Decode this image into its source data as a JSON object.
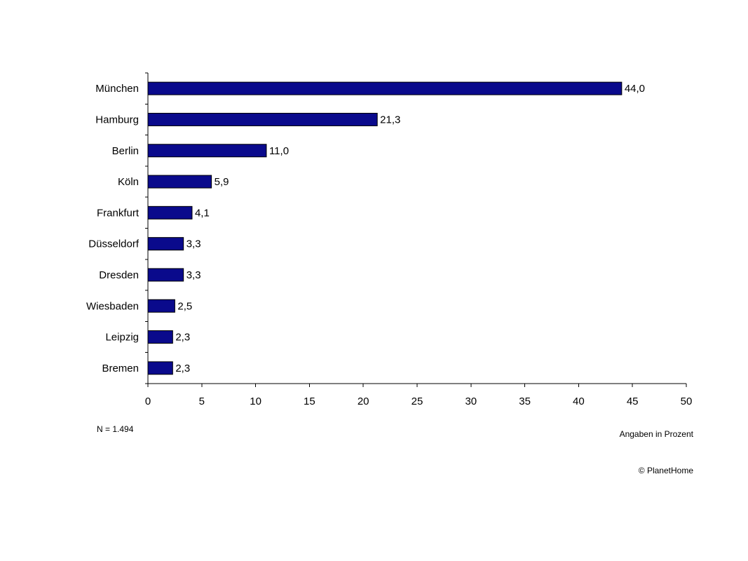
{
  "chart_data": {
    "type": "bar",
    "orientation": "horizontal",
    "categories": [
      "München",
      "Hamburg",
      "Berlin",
      "Köln",
      "Frankfurt",
      "Düsseldorf",
      "Dresden",
      "Wiesbaden",
      "Leipzig",
      "Bremen"
    ],
    "values": [
      44.0,
      21.3,
      11.0,
      5.9,
      4.1,
      3.3,
      3.3,
      2.5,
      2.3,
      2.3
    ],
    "value_labels": [
      "44,0",
      "21,3",
      "11,0",
      "5,9",
      "4,1",
      "3,3",
      "3,3",
      "2,5",
      "2,3",
      "2,3"
    ],
    "xlim": [
      0,
      50
    ],
    "x_ticks": [
      0,
      5,
      10,
      15,
      20,
      25,
      30,
      35,
      40,
      45,
      50
    ],
    "x_tick_labels": [
      "0",
      "5",
      "10",
      "15",
      "20",
      "25",
      "30",
      "35",
      "40",
      "45",
      "50"
    ],
    "bar_color": "#0a0a8c",
    "grid": false,
    "legend": "none"
  },
  "notes": {
    "sample_size": "N = 1.494",
    "unit": "Angaben in Prozent",
    "copyright": "© PlanetHome"
  }
}
